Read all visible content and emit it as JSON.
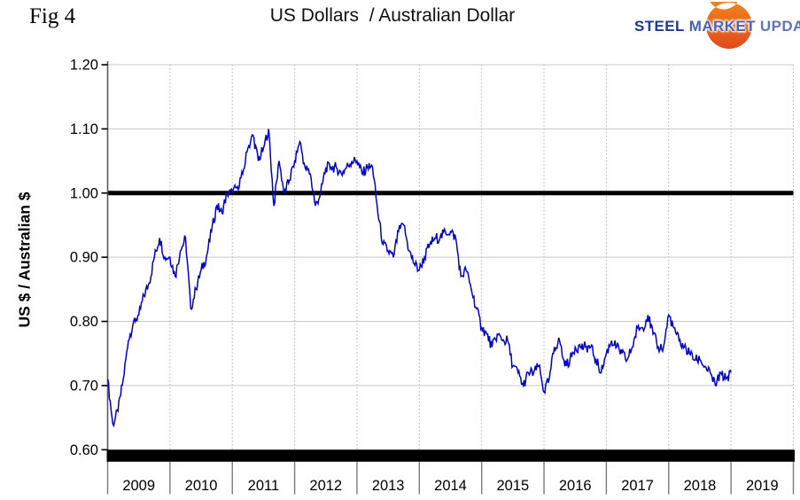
{
  "figure": {
    "fig_label": "Fig 4",
    "title": "US Dollars  / Australian Dollar"
  },
  "logo": {
    "word1": "STEEL",
    "word2": "MARKET",
    "word3": "UPDATE",
    "steel_color": "#1c3a8e",
    "market_color": "#4a63ad",
    "update_color": "#5d76bd",
    "swoosh_top_color": "#f7a31b",
    "swoosh_bottom_color": "#e2491d"
  },
  "colors": {
    "line": "#0000cc",
    "h_grid": "#c9c9c9",
    "v_grid": "#b3b3b3",
    "axis": "#5a5a5a",
    "tick": "#000000",
    "separator": "#7a7a7a",
    "reference_line": "#000000",
    "bottom_bar": "#000000",
    "label": "#000000"
  },
  "chart_data": {
    "type": "line",
    "title": "US Dollars  / Australian Dollar",
    "xlabel": "",
    "ylabel": "US $ / Australian $",
    "ylim": [
      0.6,
      1.2
    ],
    "y_ticks": [
      1.2,
      1.1,
      1.0,
      0.9,
      0.8,
      0.7,
      0.6
    ],
    "x_tick_labels": [
      "2009",
      "2010",
      "2011",
      "2012",
      "2013",
      "2014",
      "2015",
      "2016",
      "2017",
      "2018",
      "2019"
    ],
    "grid": {
      "horizontal": "solid",
      "vertical": "dotted-at-year-boundaries"
    },
    "legend": "none",
    "reference_line": {
      "value": 1.0,
      "style": "thick-black"
    },
    "series": [
      {
        "name": "US $ / Australian $",
        "color": "#0000cc",
        "start": "2009-01",
        "end": "2019-01",
        "interval": "monthly",
        "values": [
          0.71,
          0.64,
          0.66,
          0.71,
          0.77,
          0.8,
          0.81,
          0.84,
          0.86,
          0.9,
          0.93,
          0.9,
          0.9,
          0.87,
          0.91,
          0.93,
          0.82,
          0.85,
          0.88,
          0.9,
          0.94,
          0.98,
          0.97,
          1.0,
          1.0,
          1.01,
          1.03,
          1.07,
          1.09,
          1.05,
          1.07,
          1.1,
          0.98,
          1.05,
          1.0,
          1.02,
          1.05,
          1.08,
          1.04,
          1.03,
          0.98,
          1.0,
          1.04,
          1.04,
          1.04,
          1.03,
          1.04,
          1.05,
          1.05,
          1.03,
          1.04,
          1.04,
          0.97,
          0.92,
          0.91,
          0.9,
          0.94,
          0.95,
          0.91,
          0.89,
          0.88,
          0.9,
          0.92,
          0.93,
          0.93,
          0.94,
          0.94,
          0.93,
          0.87,
          0.88,
          0.85,
          0.82,
          0.79,
          0.78,
          0.76,
          0.78,
          0.77,
          0.77,
          0.73,
          0.72,
          0.7,
          0.72,
          0.72,
          0.73,
          0.69,
          0.71,
          0.76,
          0.77,
          0.73,
          0.74,
          0.76,
          0.76,
          0.76,
          0.76,
          0.74,
          0.72,
          0.75,
          0.77,
          0.76,
          0.75,
          0.74,
          0.76,
          0.79,
          0.79,
          0.81,
          0.78,
          0.76,
          0.76,
          0.81,
          0.79,
          0.77,
          0.76,
          0.75,
          0.74,
          0.74,
          0.73,
          0.72,
          0.7,
          0.72,
          0.71,
          0.72
        ]
      }
    ]
  }
}
